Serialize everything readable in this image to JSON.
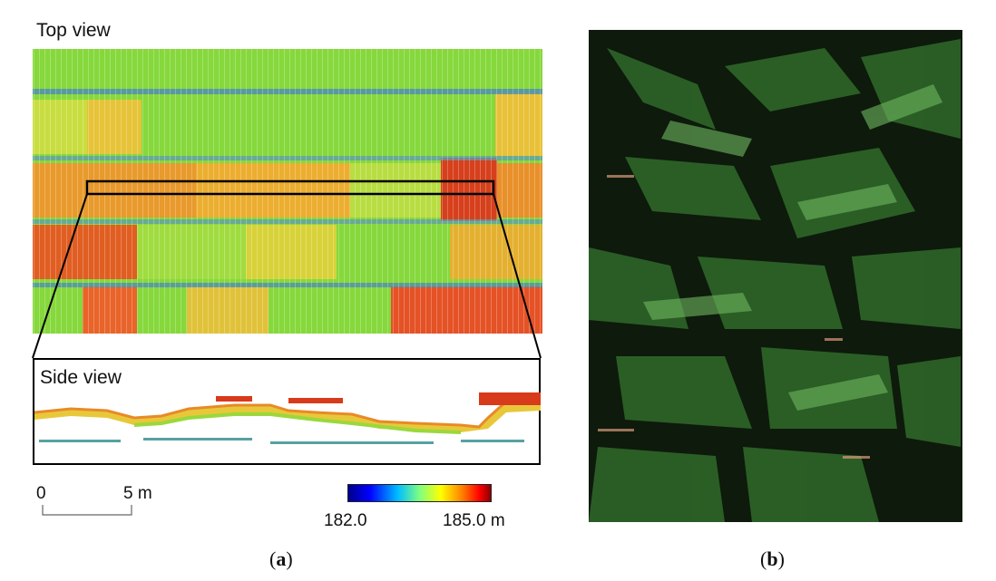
{
  "panel_a": {
    "top_view_label": "Top view",
    "side_view_label": "Side view",
    "scale_bar": {
      "start_label": "0",
      "end_label": "5 m"
    },
    "colorbar": {
      "min_label": "182.0",
      "max_label": "185.0 m",
      "colors": [
        "#00008b",
        "#0000ff",
        "#00bfff",
        "#7fff7f",
        "#ffff00",
        "#ff7f00",
        "#ff0000",
        "#8b0000"
      ]
    },
    "caption_letter": "a"
  },
  "panel_b": {
    "caption_letter": "b"
  },
  "colors": {
    "canopy_low": "#7fd83a",
    "canopy_mid": "#e8d030",
    "canopy_high": "#e03a1a",
    "row_gap": "#3a7aa0",
    "photo_bg": "#0d1a0d",
    "leaf": "#2f6a2a"
  }
}
